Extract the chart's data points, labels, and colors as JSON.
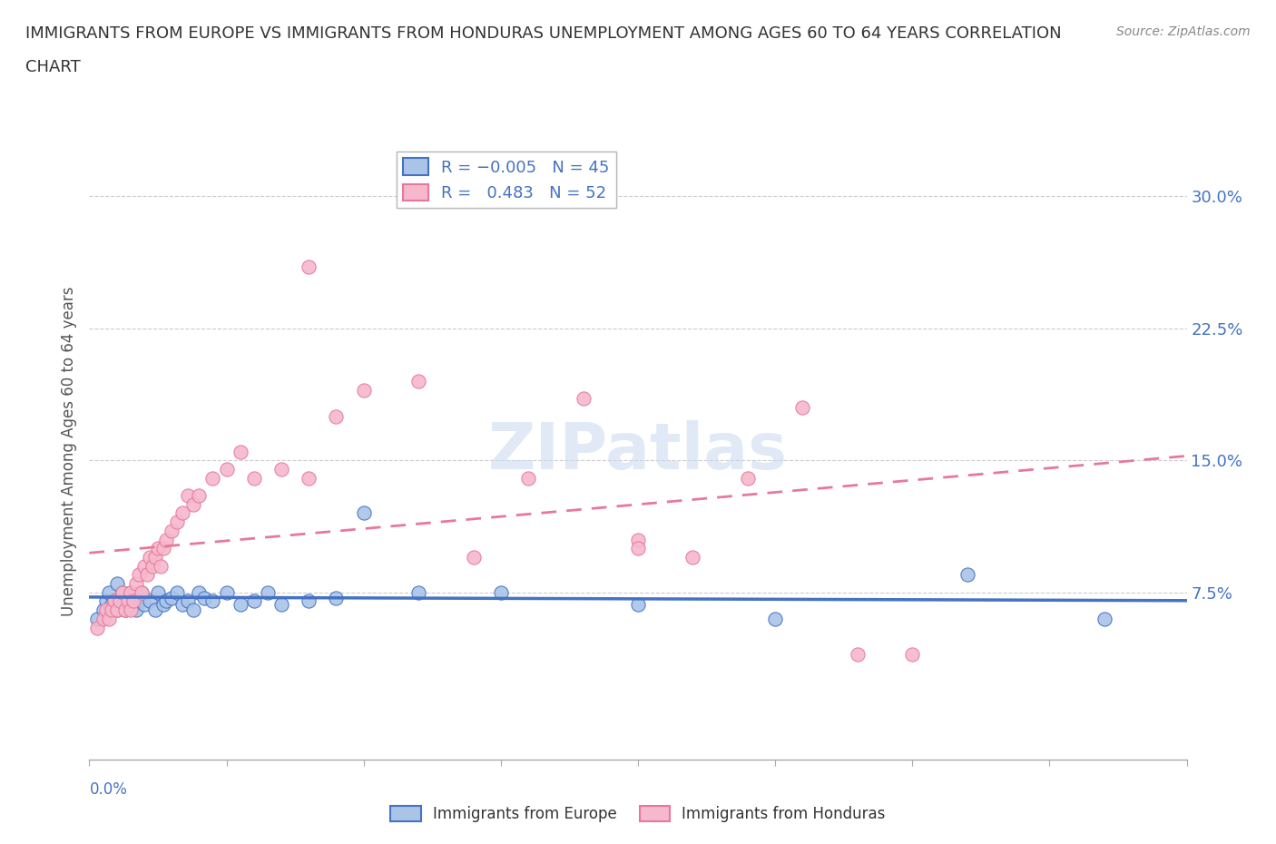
{
  "title_line1": "IMMIGRANTS FROM EUROPE VS IMMIGRANTS FROM HONDURAS UNEMPLOYMENT AMONG AGES 60 TO 64 YEARS CORRELATION",
  "title_line2": "CHART",
  "source": "Source: ZipAtlas.com",
  "ylabel": "Unemployment Among Ages 60 to 64 years",
  "ytick_labels": [
    "7.5%",
    "15.0%",
    "22.5%",
    "30.0%"
  ],
  "ytick_values": [
    0.075,
    0.15,
    0.225,
    0.3
  ],
  "xlim": [
    0.0,
    0.4
  ],
  "ylim": [
    -0.02,
    0.33
  ],
  "watermark": "ZIPatlas",
  "europe_color": "#aac4e8",
  "honduras_color": "#f5b8cc",
  "europe_edge_color": "#4472c4",
  "honduras_edge_color": "#e8789a",
  "trendline_blue": "#4472c4",
  "trendline_pink": "#e8789a",
  "background_color": "#ffffff",
  "grid_color": "#cccccc",
  "axis_color": "#aaaaaa",
  "title_color": "#333333",
  "label_color": "#555555",
  "europe_x": [
    0.003,
    0.005,
    0.006,
    0.007,
    0.008,
    0.009,
    0.01,
    0.01,
    0.011,
    0.012,
    0.013,
    0.014,
    0.015,
    0.016,
    0.017,
    0.018,
    0.019,
    0.02,
    0.022,
    0.024,
    0.025,
    0.027,
    0.028,
    0.03,
    0.032,
    0.034,
    0.036,
    0.038,
    0.04,
    0.042,
    0.045,
    0.05,
    0.055,
    0.06,
    0.065,
    0.07,
    0.08,
    0.09,
    0.1,
    0.12,
    0.15,
    0.2,
    0.25,
    0.32,
    0.37
  ],
  "europe_y": [
    0.06,
    0.065,
    0.07,
    0.075,
    0.068,
    0.07,
    0.065,
    0.08,
    0.07,
    0.075,
    0.065,
    0.07,
    0.075,
    0.068,
    0.065,
    0.07,
    0.075,
    0.068,
    0.07,
    0.065,
    0.075,
    0.068,
    0.07,
    0.072,
    0.075,
    0.068,
    0.07,
    0.065,
    0.075,
    0.072,
    0.07,
    0.075,
    0.068,
    0.07,
    0.075,
    0.068,
    0.07,
    0.072,
    0.12,
    0.075,
    0.075,
    0.068,
    0.06,
    0.085,
    0.06
  ],
  "honduras_x": [
    0.003,
    0.005,
    0.006,
    0.007,
    0.008,
    0.009,
    0.01,
    0.011,
    0.012,
    0.013,
    0.014,
    0.015,
    0.015,
    0.016,
    0.017,
    0.018,
    0.019,
    0.02,
    0.021,
    0.022,
    0.023,
    0.024,
    0.025,
    0.026,
    0.027,
    0.028,
    0.03,
    0.032,
    0.034,
    0.036,
    0.038,
    0.04,
    0.045,
    0.05,
    0.055,
    0.06,
    0.07,
    0.08,
    0.09,
    0.1,
    0.12,
    0.14,
    0.16,
    0.18,
    0.2,
    0.22,
    0.24,
    0.26,
    0.28,
    0.3,
    0.2,
    0.08
  ],
  "honduras_y": [
    0.055,
    0.06,
    0.065,
    0.06,
    0.065,
    0.07,
    0.065,
    0.07,
    0.075,
    0.065,
    0.07,
    0.065,
    0.075,
    0.07,
    0.08,
    0.085,
    0.075,
    0.09,
    0.085,
    0.095,
    0.09,
    0.095,
    0.1,
    0.09,
    0.1,
    0.105,
    0.11,
    0.115,
    0.12,
    0.13,
    0.125,
    0.13,
    0.14,
    0.145,
    0.155,
    0.14,
    0.145,
    0.26,
    0.175,
    0.19,
    0.195,
    0.095,
    0.14,
    0.185,
    0.105,
    0.095,
    0.14,
    0.18,
    0.04,
    0.04,
    0.1,
    0.14
  ]
}
